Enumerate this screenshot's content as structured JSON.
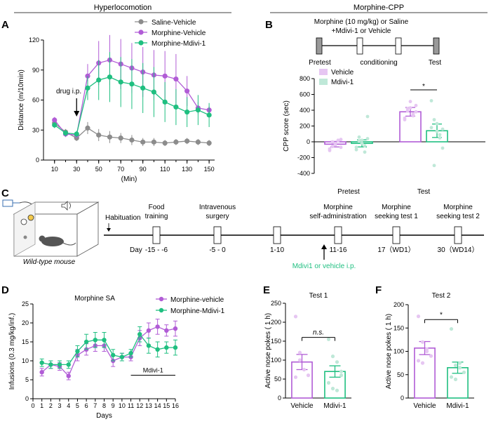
{
  "headers": {
    "left": "Hyperlocomotion",
    "right": "Morphine-CPP"
  },
  "panels": {
    "a": "A",
    "b": "B",
    "c": "C",
    "d": "D",
    "e": "E",
    "f": "F"
  },
  "colors": {
    "saline": "#8c8c8c",
    "morphine": "#b15cd6",
    "mdivi": "#1fbf80",
    "morphine_light": "#e6c6f2",
    "mdivi_light": "#bfe8d8",
    "gray_box": "#999999"
  },
  "panel_b_schematic": {
    "line1": "Morphine (10 mg/kg) or Saline",
    "line2": "+Mdivi-1 or Vehicle",
    "pretest": "Pretest",
    "conditioning": "conditioning",
    "test": "Test"
  },
  "panel_c": {
    "habituation": "Habituation",
    "steps": [
      {
        "label1": "Food",
        "label2": "training",
        "day": "-15 - -6"
      },
      {
        "label1": "Intravenous",
        "label2": "surgery",
        "day": "-5 - 0"
      },
      {
        "label1": "",
        "label2": "",
        "day": "1-10"
      },
      {
        "label1": "Morphine",
        "label2": "self-administration",
        "day": "11-16"
      },
      {
        "label1": "Morphine",
        "label2": "seeking test 1",
        "day": "17（WD1）"
      },
      {
        "label1": "Morphine",
        "label2": "seeking test 2",
        "day": "30（WD14）"
      }
    ],
    "day_prefix": "Day",
    "treatment": "Mdivi1 or vehicle i.p.",
    "mouse_label": "Wild-type mouse"
  },
  "chart_data": [
    {
      "id": "A",
      "type": "line",
      "xlabel": "(Min)",
      "ylabel": "Distance (m/10min)",
      "xticks": [
        10,
        30,
        50,
        70,
        90,
        110,
        130,
        150
      ],
      "xlim": [
        0,
        155
      ],
      "ylim": [
        0,
        120
      ],
      "yticks": [
        0,
        30,
        60,
        90,
        120
      ],
      "annotation": "drug i.p.",
      "legend": "top-right",
      "x": [
        10,
        20,
        30,
        40,
        50,
        60,
        70,
        80,
        90,
        100,
        110,
        120,
        130,
        140,
        150
      ],
      "series": [
        {
          "name": "Saline-Vehicle",
          "color": "#8c8c8c",
          "values": [
            37,
            28,
            22,
            32,
            25,
            23,
            22,
            20,
            18,
            18,
            17,
            18,
            19,
            18,
            17
          ],
          "err": [
            3,
            3,
            3,
            6,
            6,
            6,
            5,
            5,
            4,
            4,
            3,
            3,
            3,
            3,
            3
          ]
        },
        {
          "name": "Morphine-Vehicle",
          "color": "#b15cd6",
          "values": [
            40,
            26,
            25,
            84,
            97,
            100,
            96,
            92,
            88,
            85,
            84,
            81,
            69,
            52,
            50
          ],
          "err": [
            3,
            3,
            3,
            12,
            22,
            25,
            25,
            25,
            25,
            25,
            25,
            25,
            15,
            6,
            4
          ]
        },
        {
          "name": "Morphine-Mdivi-1",
          "color": "#1fbf80",
          "values": [
            35,
            27,
            26,
            72,
            80,
            83,
            78,
            76,
            72,
            68,
            58,
            53,
            48,
            50,
            45
          ],
          "err": [
            3,
            3,
            3,
            12,
            20,
            25,
            25,
            25,
            25,
            25,
            20,
            18,
            15,
            15,
            12
          ]
        }
      ]
    },
    {
      "id": "B",
      "type": "bar",
      "ylabel": "CPP score (sec)",
      "ylim": [
        -400,
        800
      ],
      "yticks": [
        -400,
        -200,
        0,
        200,
        400,
        600,
        800
      ],
      "categories": [
        "Pretest",
        "Test"
      ],
      "legend": "top-left",
      "significance": "*",
      "series": [
        {
          "name": "Vehicle",
          "color": "#b15cd6",
          "values": [
            -30,
            380
          ],
          "err": [
            35,
            55
          ],
          "points": [
            [
              -110,
              -60,
              -20,
              10,
              30,
              -90,
              0,
              -40,
              20,
              -70
            ],
            [
              300,
              420,
              510,
              350,
              460,
              280,
              390,
              430,
              330,
              380
            ]
          ]
        },
        {
          "name": "Mdivi-1",
          "color": "#1fbf80",
          "values": [
            -20,
            140
          ],
          "err": [
            45,
            85
          ],
          "points": [
            [
              -100,
              60,
              20,
              -50,
              320,
              -70,
              10,
              -20,
              -130,
              40
            ],
            [
              520,
              280,
              130,
              50,
              -80,
              180,
              -300,
              230,
              90,
              160
            ]
          ]
        }
      ]
    },
    {
      "id": "D",
      "type": "line",
      "title": "Morphine SA",
      "xlabel": "Days",
      "ylabel": "Infusions (0.3 mg/kg/inf.)",
      "xlim": [
        0,
        16
      ],
      "ylim": [
        0,
        25
      ],
      "yticks": [
        0,
        5,
        10,
        15,
        20,
        25
      ],
      "xticks": [
        0,
        1,
        2,
        3,
        4,
        5,
        6,
        7,
        8,
        9,
        10,
        11,
        12,
        13,
        14,
        15,
        16
      ],
      "annotation": "Mdivi-1",
      "legend": "top-right",
      "x": [
        1,
        2,
        3,
        4,
        5,
        6,
        7,
        8,
        9,
        10,
        11,
        12,
        13,
        14,
        15,
        16
      ],
      "series": [
        {
          "name": "Morphine-vehicle",
          "color": "#b15cd6",
          "values": [
            7,
            9,
            8.5,
            6,
            11.5,
            13,
            14,
            14,
            10,
            11,
            11,
            16,
            18,
            19,
            18,
            18.5
          ],
          "err": [
            1,
            1,
            1,
            1,
            1.5,
            1.5,
            1.5,
            1.5,
            1.5,
            1,
            1,
            2,
            2,
            2,
            1.5,
            2
          ]
        },
        {
          "name": "Morphine-Mdivi-1",
          "color": "#1fbf80",
          "values": [
            9.5,
            9,
            9,
            9,
            12.5,
            15,
            15.5,
            15.5,
            11.5,
            11,
            12,
            17,
            14,
            13,
            13.5,
            13.5
          ],
          "err": [
            1,
            1,
            1,
            1,
            1.5,
            2,
            2,
            2,
            1.5,
            1,
            1,
            2,
            2,
            2,
            1.5,
            2
          ]
        }
      ]
    },
    {
      "id": "E",
      "type": "bar",
      "title": "Test 1",
      "ylabel": "Active nose pokes ( 1 h)",
      "ylim": [
        0,
        250
      ],
      "yticks": [
        0,
        50,
        100,
        150,
        200,
        250
      ],
      "categories": [
        "Vehicle",
        "Mdivi-1"
      ],
      "significance": "n.s.",
      "values": [
        95,
        70
      ],
      "err": [
        20,
        15
      ],
      "colors": [
        "#b15cd6",
        "#1fbf80"
      ],
      "points": [
        [
          215,
          120,
          75,
          60,
          55,
          100
        ],
        [
          155,
          110,
          95,
          60,
          40,
          25,
          20,
          70
        ]
      ]
    },
    {
      "id": "F",
      "type": "bar",
      "title": "Test 2",
      "ylabel": "Active nose pokes ( 1 h)",
      "ylim": [
        0,
        200
      ],
      "yticks": [
        0,
        50,
        100,
        150,
        200
      ],
      "categories": [
        "Vehicle",
        "Mdivi-1"
      ],
      "significance": "*",
      "values": [
        107,
        65
      ],
      "err": [
        14,
        12
      ],
      "colors": [
        "#b15cd6",
        "#1fbf80"
      ],
      "points": [
        [
          175,
          120,
          105,
          90,
          80,
          75,
          100
        ],
        [
          148,
          70,
          65,
          55,
          45,
          40,
          75
        ]
      ]
    }
  ]
}
